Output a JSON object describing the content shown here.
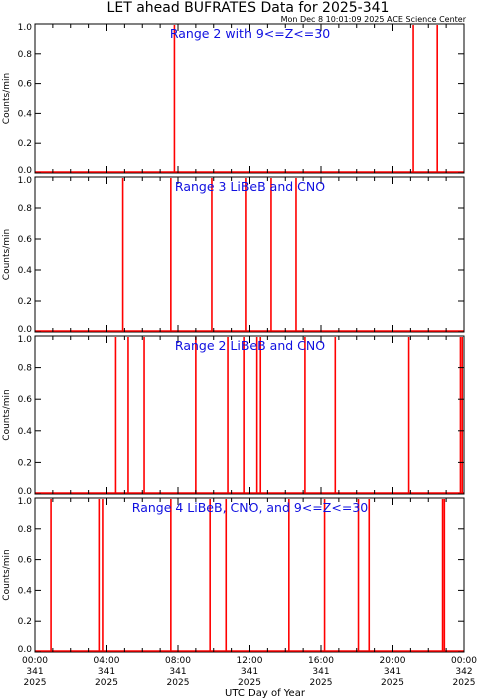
{
  "header": {
    "title": "LET ahead BUFRATES Data for 2025-341",
    "timestamp": "Mon Dec  8 10:01:09 2025 ACE Science Center"
  },
  "colors": {
    "trace": "#ff0000",
    "panel_title": "#1010e0",
    "axes": "#000000"
  },
  "chart_data": [
    {
      "type": "line",
      "title": "Range 2 with 9<=Z<=30",
      "ylabel": "Counts/min",
      "ylim": [
        0,
        1
      ],
      "xlim_hours": [
        0,
        24
      ],
      "spikes_hours": [
        7.8,
        21.15,
        22.5
      ]
    },
    {
      "type": "line",
      "title": "Range 3 LiBeB and CNO",
      "ylabel": "Counts/min",
      "ylim": [
        0,
        1
      ],
      "xlim_hours": [
        0,
        24
      ],
      "spikes_hours": [
        4.9,
        7.6,
        9.9,
        11.8,
        13.2,
        14.6
      ]
    },
    {
      "type": "line",
      "title": "Range 2 LiBeB and CNO",
      "ylabel": "Counts/min",
      "ylim": [
        0,
        1
      ],
      "xlim_hours": [
        0,
        24
      ],
      "spikes_hours": [
        4.5,
        5.2,
        6.1,
        9.0,
        10.8,
        11.7,
        12.4,
        12.6,
        15.1,
        16.8,
        20.9,
        23.8,
        23.9
      ]
    },
    {
      "type": "line",
      "title": "Range 4 LiBeB, CNO, and 9<=Z<=30",
      "ylabel": "Counts/min",
      "ylim": [
        0,
        1
      ],
      "xlim_hours": [
        0,
        24
      ],
      "spikes_hours": [
        0.9,
        3.6,
        3.8,
        7.6,
        9.8,
        10.7,
        14.2,
        16.2,
        18.1,
        18.7,
        22.8,
        22.9
      ]
    }
  ],
  "y_ticks": [
    "0.0",
    "0.2",
    "0.4",
    "0.6",
    "0.8",
    "1.0"
  ],
  "x_ticks": [
    {
      "time": "00:00",
      "day": "341",
      "year": "2025"
    },
    {
      "time": "04:00",
      "day": "341",
      "year": "2025"
    },
    {
      "time": "08:00",
      "day": "341",
      "year": "2025"
    },
    {
      "time": "12:00",
      "day": "341",
      "year": "2025"
    },
    {
      "time": "16:00",
      "day": "341",
      "year": "2025"
    },
    {
      "time": "20:00",
      "day": "341",
      "year": "2025"
    },
    {
      "time": "00:00",
      "day": "342",
      "year": "2025"
    }
  ],
  "xlabel": "UTC Day of Year"
}
